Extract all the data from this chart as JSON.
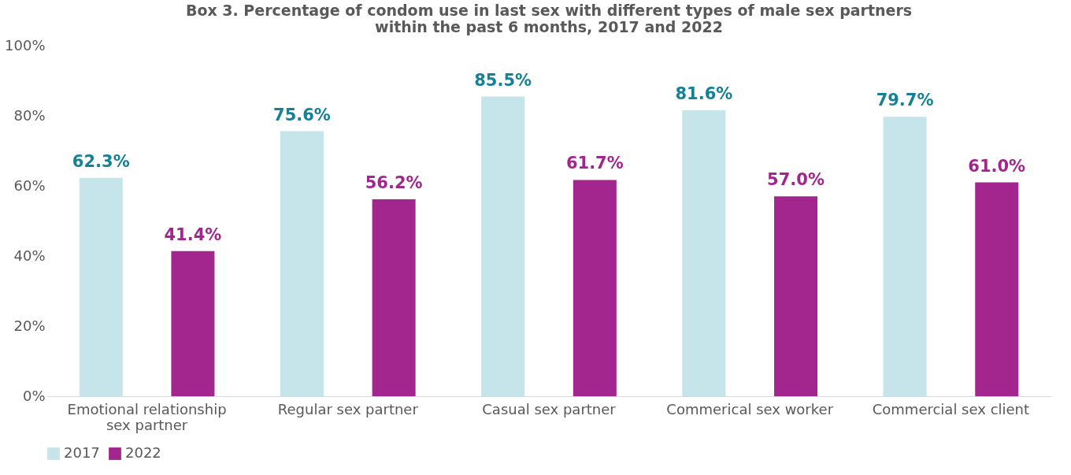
{
  "chart_data": {
    "type": "bar",
    "title": "Box 3. Percentage of condom use in last sex with different types of male sex partners within the past 6 months, 2017 and 2022",
    "categories": [
      "Emotional relationship sex partner",
      "Regular sex partner",
      "Casual sex partner",
      "Commerical sex worker",
      "Commercial sex client"
    ],
    "series": [
      {
        "name": "2017",
        "color": "#c5e5eb",
        "values": [
          62.3,
          75.6,
          85.5,
          81.6,
          79.7
        ],
        "value_labels": [
          "62.3%",
          "75.6%",
          "85.5%",
          "81.6%",
          "79.7%"
        ]
      },
      {
        "name": "2022",
        "color": "#a3268f",
        "values": [
          41.4,
          56.2,
          61.7,
          57.0,
          61.0
        ],
        "value_labels": [
          "41.4%",
          "56.2%",
          "61.7%",
          "57.0%",
          "61.0%"
        ]
      }
    ],
    "ylim": [
      0,
      100
    ],
    "yticks": [
      {
        "value": 0,
        "label": "0%"
      },
      {
        "value": 20,
        "label": "20%"
      },
      {
        "value": 40,
        "label": "40%"
      },
      {
        "value": 60,
        "label": "60%"
      },
      {
        "value": 80,
        "label": "80%"
      },
      {
        "value": 100,
        "label": "100%"
      }
    ],
    "grid": false,
    "legend": "bottom"
  }
}
